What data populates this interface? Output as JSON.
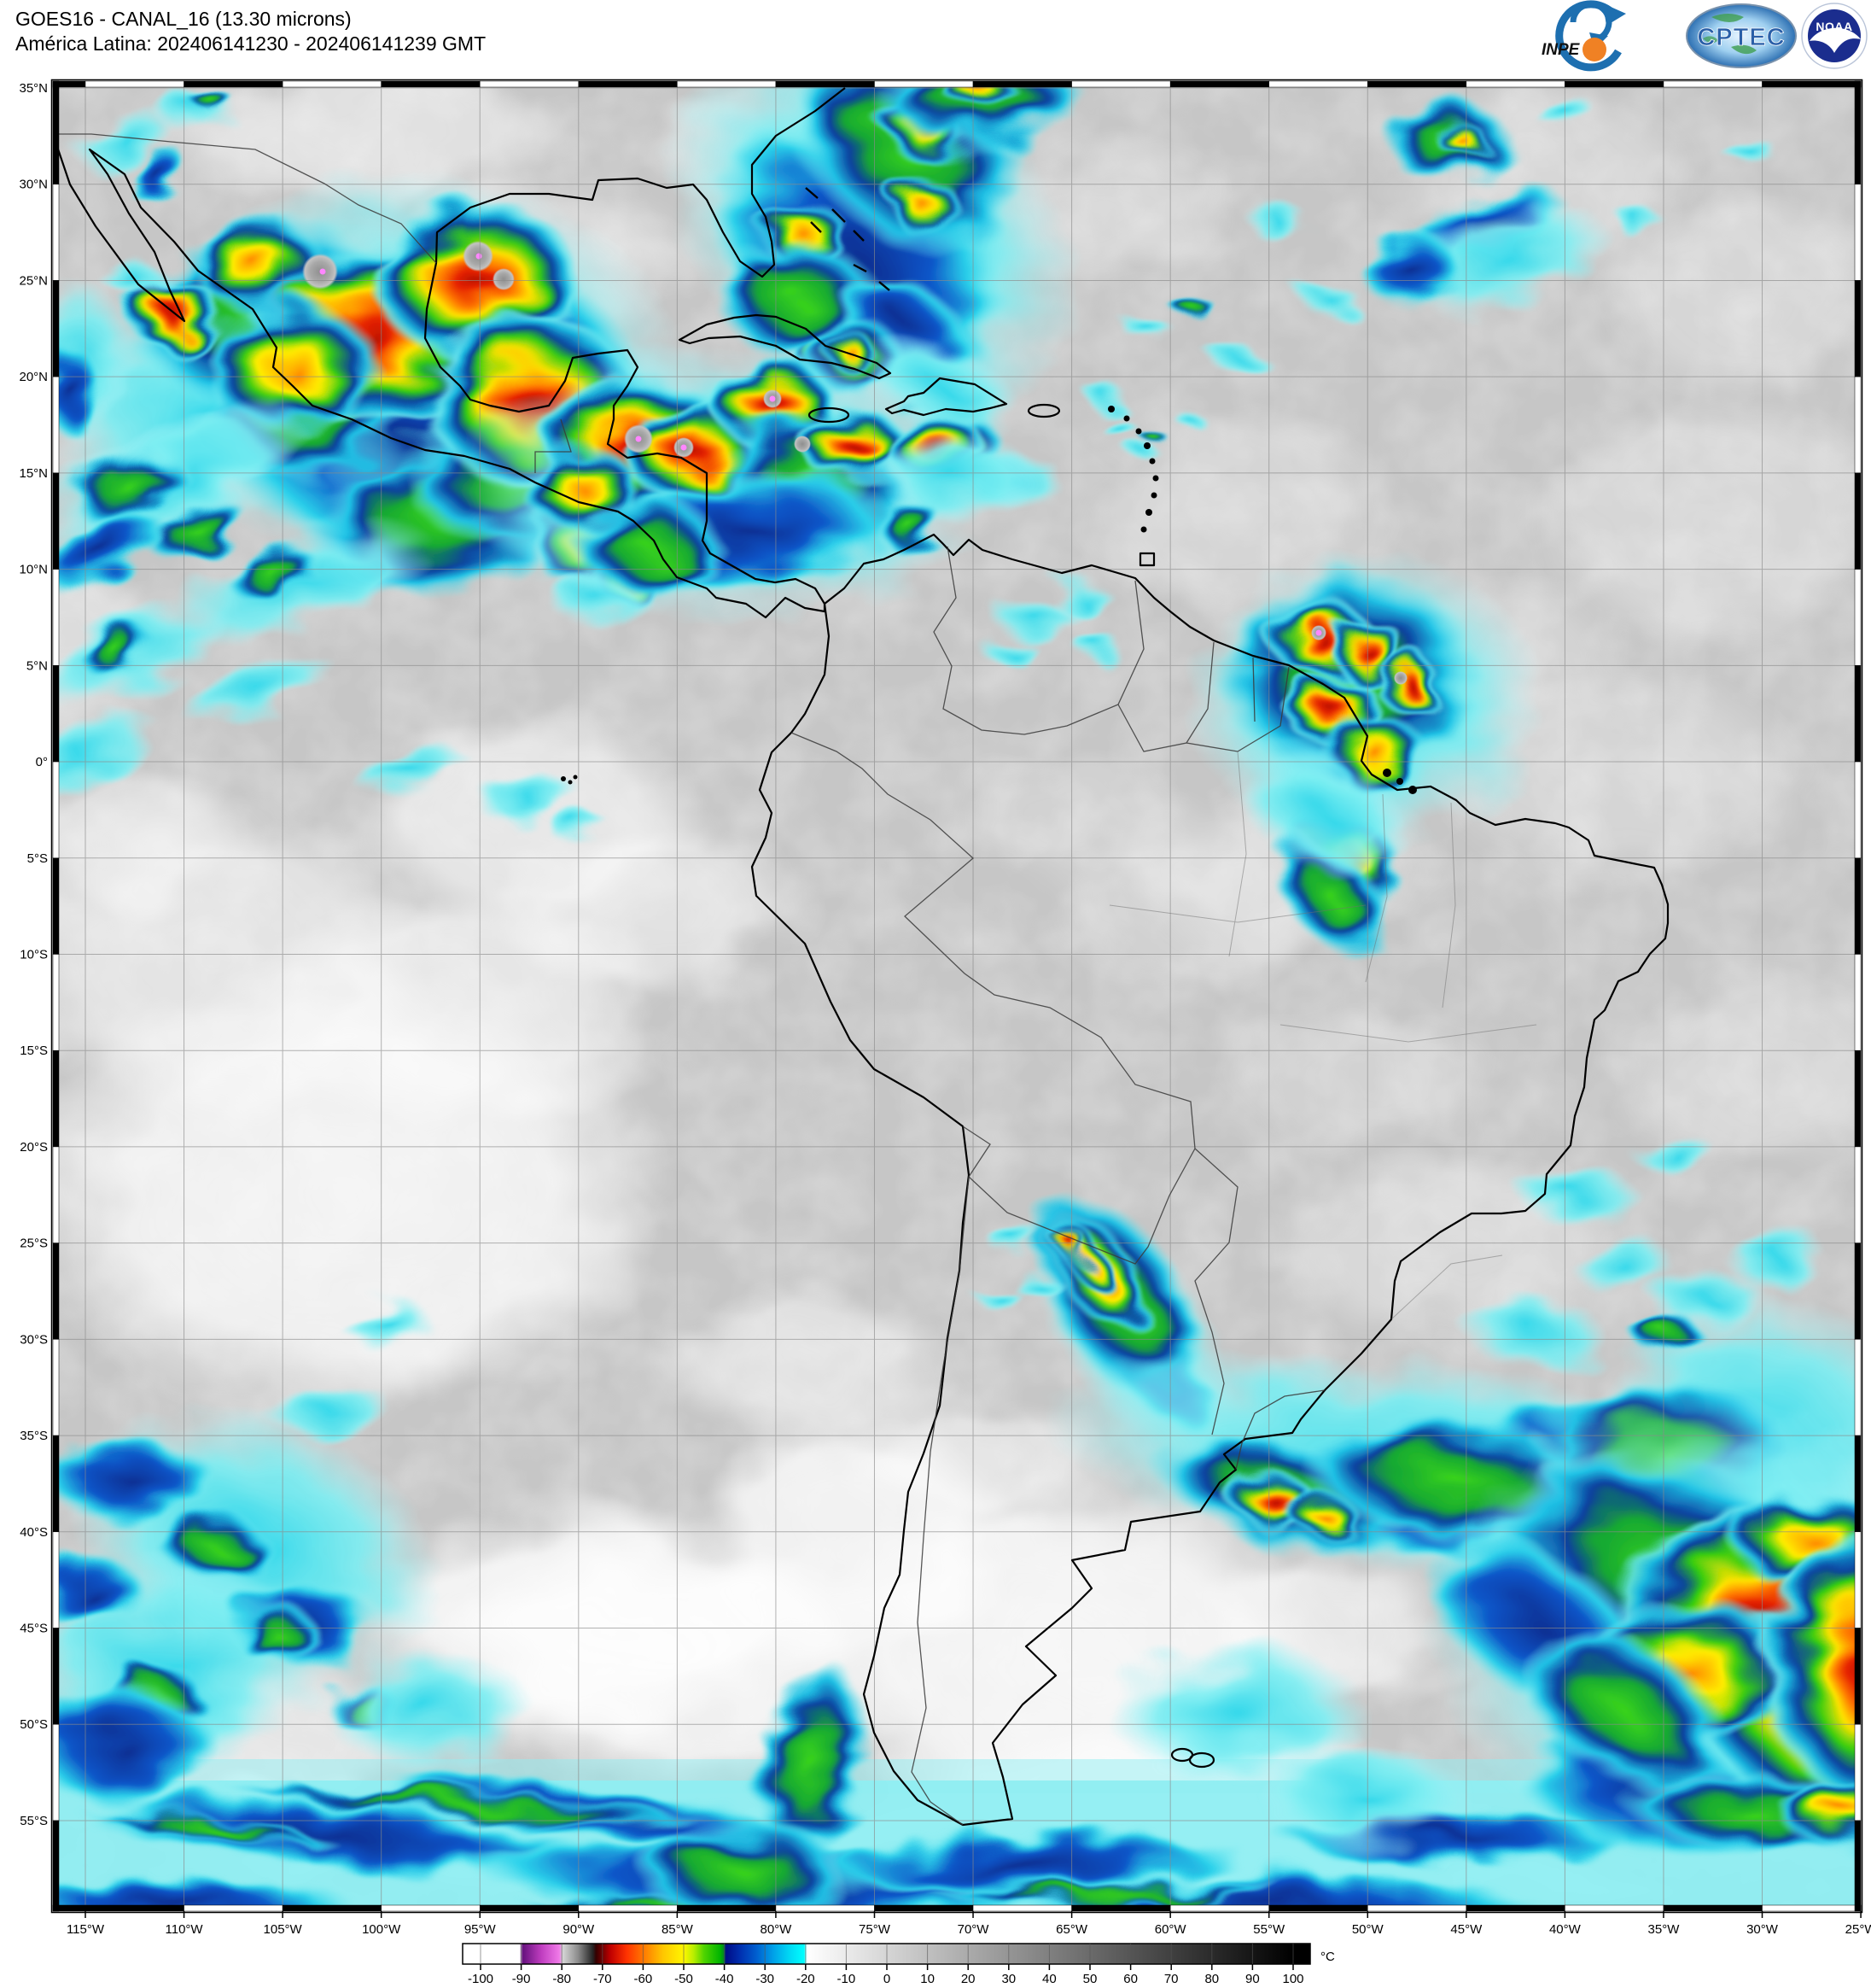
{
  "header": {
    "line1": "GOES16 - CANAL_16 (13.30 microns)",
    "line2": "América Latina: 202406141230 - 202406141239 GMT"
  },
  "logos": {
    "inpe_label": "INPE",
    "cptec_label": "CPTEC",
    "noaa_label": "NOAA"
  },
  "axes": {
    "lat_labels": [
      "35°N",
      "30°N",
      "25°N",
      "20°N",
      "15°N",
      "10°N",
      "5°N",
      "0°",
      "5°S",
      "10°S",
      "15°S",
      "20°S",
      "25°S",
      "30°S",
      "35°S",
      "40°S",
      "45°S",
      "50°S",
      "55°S"
    ],
    "lon_labels": [
      "115°W",
      "110°W",
      "105°W",
      "100°W",
      "95°W",
      "90°W",
      "85°W",
      "80°W",
      "75°W",
      "70°W",
      "65°W",
      "60°W",
      "55°W",
      "50°W",
      "45°W",
      "40°W",
      "35°W",
      "30°W",
      "25°W"
    ]
  },
  "colorbar": {
    "unit": "°C",
    "ticks": [
      -100,
      -90,
      -80,
      -70,
      -60,
      -50,
      -40,
      -30,
      -20,
      -10,
      0,
      10,
      20,
      30,
      40,
      50,
      60,
      70,
      80,
      90,
      100
    ],
    "stops": [
      {
        "p": 0.0,
        "c": "#ffffff"
      },
      {
        "p": 0.048,
        "c": "#ffffff"
      },
      {
        "p": 0.052,
        "c": "#66117e"
      },
      {
        "p": 0.075,
        "c": "#c03ec0"
      },
      {
        "p": 0.097,
        "c": "#f07ae8"
      },
      {
        "p": 0.101,
        "c": "#d6d6d6"
      },
      {
        "p": 0.12,
        "c": "#8c8c8c"
      },
      {
        "p": 0.138,
        "c": "#262626"
      },
      {
        "p": 0.142,
        "c": "#330000"
      },
      {
        "p": 0.16,
        "c": "#c00000"
      },
      {
        "p": 0.18,
        "c": "#ff3300"
      },
      {
        "p": 0.2,
        "c": "#ff7700"
      },
      {
        "p": 0.225,
        "c": "#ffc800"
      },
      {
        "p": 0.25,
        "c": "#fff600"
      },
      {
        "p": 0.262,
        "c": "#baee00"
      },
      {
        "p": 0.275,
        "c": "#4fd400"
      },
      {
        "p": 0.295,
        "c": "#00b400"
      },
      {
        "p": 0.299,
        "c": "#008c20"
      },
      {
        "p": 0.302,
        "c": "#000c86"
      },
      {
        "p": 0.32,
        "c": "#0030b0"
      },
      {
        "p": 0.34,
        "c": "#0060d0"
      },
      {
        "p": 0.36,
        "c": "#00a0e8"
      },
      {
        "p": 0.38,
        "c": "#00d8f4"
      },
      {
        "p": 0.398,
        "c": "#00ffff"
      },
      {
        "p": 0.402,
        "c": "#ffffff"
      },
      {
        "p": 1.0,
        "c": "#000000"
      }
    ]
  }
}
